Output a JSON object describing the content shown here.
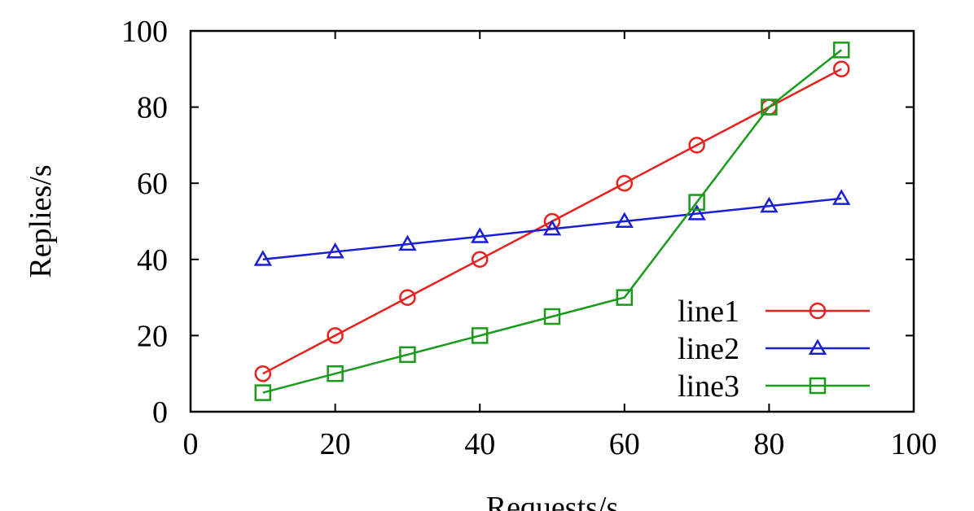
{
  "chart_data": {
    "type": "line",
    "title": "",
    "xlabel": "Requests/s",
    "ylabel": "Replies/s",
    "xlim": [
      0,
      100
    ],
    "ylim": [
      0,
      100
    ],
    "xticks": [
      0,
      20,
      40,
      60,
      80,
      100
    ],
    "yticks": [
      0,
      20,
      40,
      60,
      80,
      100
    ],
    "grid": false,
    "legend_position": "bottom-right",
    "x": [
      10,
      20,
      30,
      40,
      50,
      60,
      70,
      80,
      90
    ],
    "series": [
      {
        "name": "line1",
        "marker": "circle",
        "color": "#e8201e",
        "values": [
          10,
          20,
          30,
          40,
          50,
          60,
          70,
          80,
          90
        ]
      },
      {
        "name": "line2",
        "marker": "triangle",
        "color": "#1a1fd6",
        "values": [
          40,
          42,
          44,
          46,
          48,
          50,
          52,
          54,
          56
        ]
      },
      {
        "name": "line3",
        "marker": "square",
        "color": "#1a9a1a",
        "values": [
          5,
          10,
          15,
          20,
          25,
          30,
          55,
          80,
          95
        ]
      }
    ]
  }
}
